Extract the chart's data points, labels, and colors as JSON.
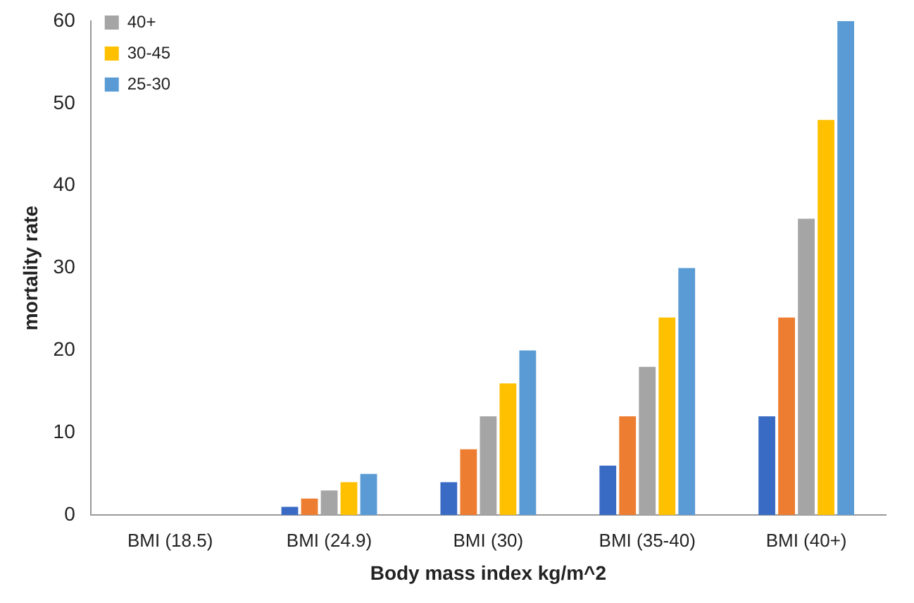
{
  "chart_data": {
    "type": "bar",
    "xlabel": "Body mass index kg/m^2",
    "ylabel": "mortality rate",
    "categories": [
      "BMI (18.5)",
      "BMI (24.9)",
      "BMI (30)",
      "BMI (35-40)",
      "BMI (40+)"
    ],
    "series": [
      {
        "color": "#3a6bc4",
        "values": [
          0,
          1,
          4,
          6,
          12
        ]
      },
      {
        "color": "#ed7d31",
        "values": [
          0,
          2,
          8,
          12,
          24
        ]
      },
      {
        "name": "40+",
        "color": "#a5a5a5",
        "values": [
          0,
          3,
          12,
          18,
          36
        ]
      },
      {
        "name": "30-45",
        "color": "#ffc000",
        "values": [
          0,
          4,
          16,
          24,
          48
        ]
      },
      {
        "name": "25-30",
        "color": "#5b9bd5",
        "values": [
          0,
          5,
          20,
          30,
          60
        ]
      }
    ],
    "ylim": [
      0,
      60
    ],
    "yticks": [
      0,
      10,
      20,
      30,
      40,
      50,
      60
    ],
    "grid": false,
    "legend": "top left"
  }
}
